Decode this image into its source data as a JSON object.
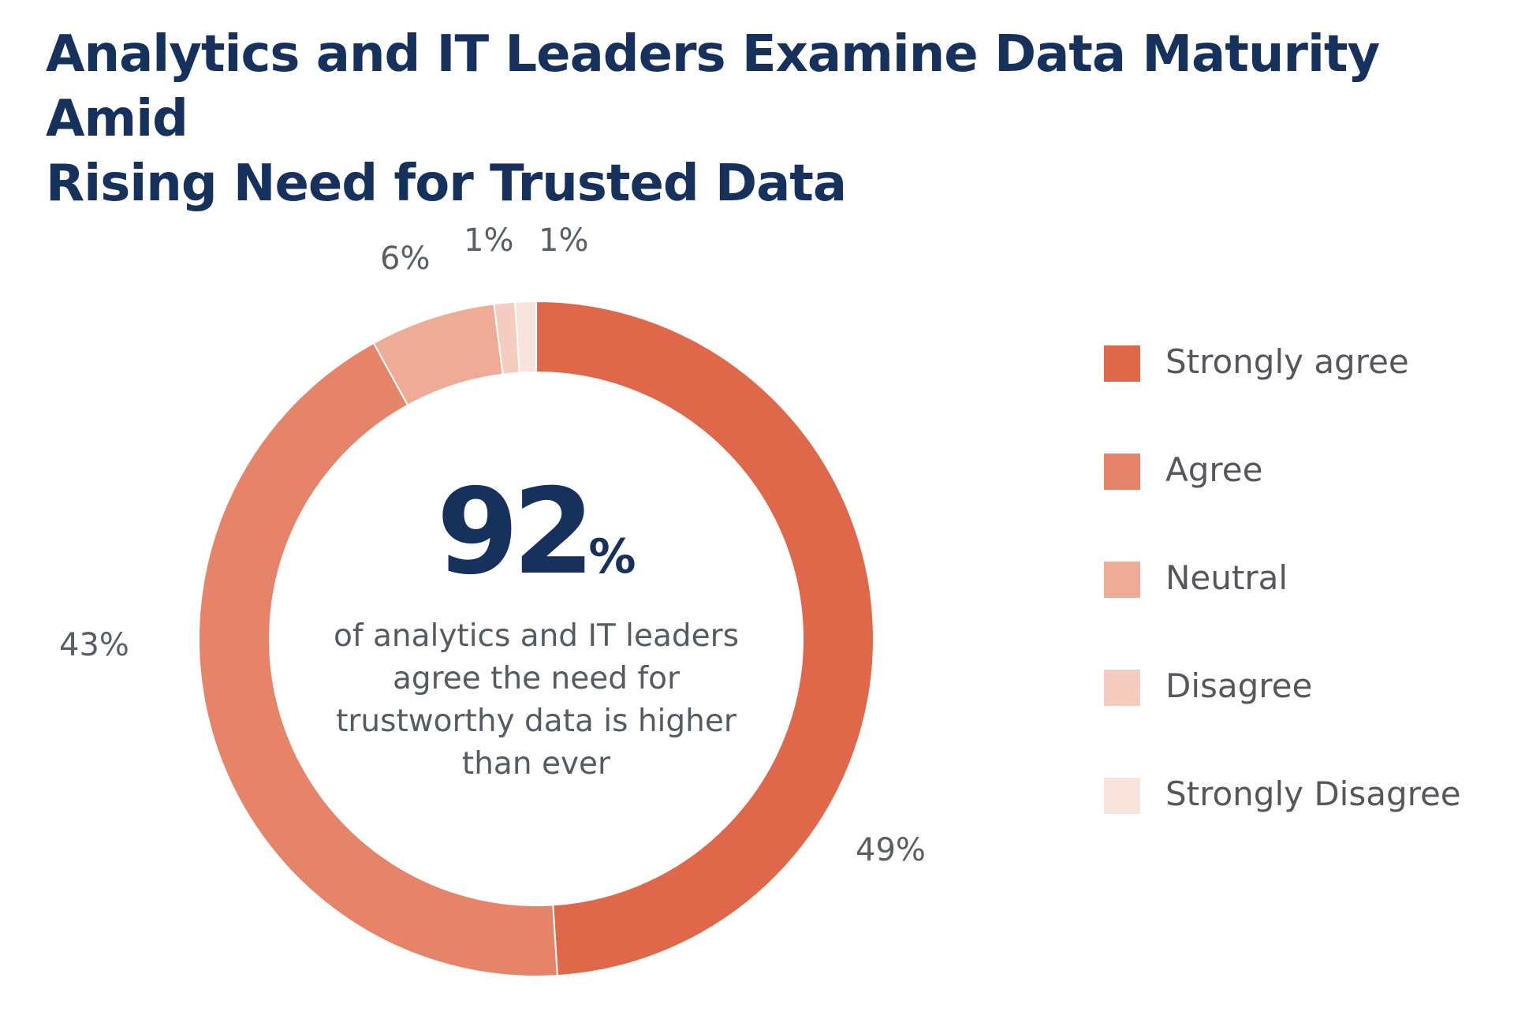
{
  "header": {
    "title_line1": "Analytics and IT Leaders Examine Data Maturity Amid",
    "title_line2": "Rising Need for Trusted Data"
  },
  "center": {
    "big_number": "92",
    "big_unit": "%",
    "subtitle": "of analytics and IT leaders agree the need for trustworthy data is higher than ever"
  },
  "chart_data": {
    "type": "pie",
    "variant": "donut",
    "categories": [
      "Strongly agree",
      "Agree",
      "Neutral",
      "Disagree",
      "Strongly Disagree"
    ],
    "values": [
      49,
      43,
      6,
      1,
      1
    ],
    "value_labels": [
      "49%",
      "43%",
      "6%",
      "1%",
      "1%"
    ],
    "colors": [
      "#e0684a",
      "#e58468",
      "#eeab95",
      "#f4cdc0",
      "#f8e4dd"
    ],
    "legend_placement": "right"
  }
}
